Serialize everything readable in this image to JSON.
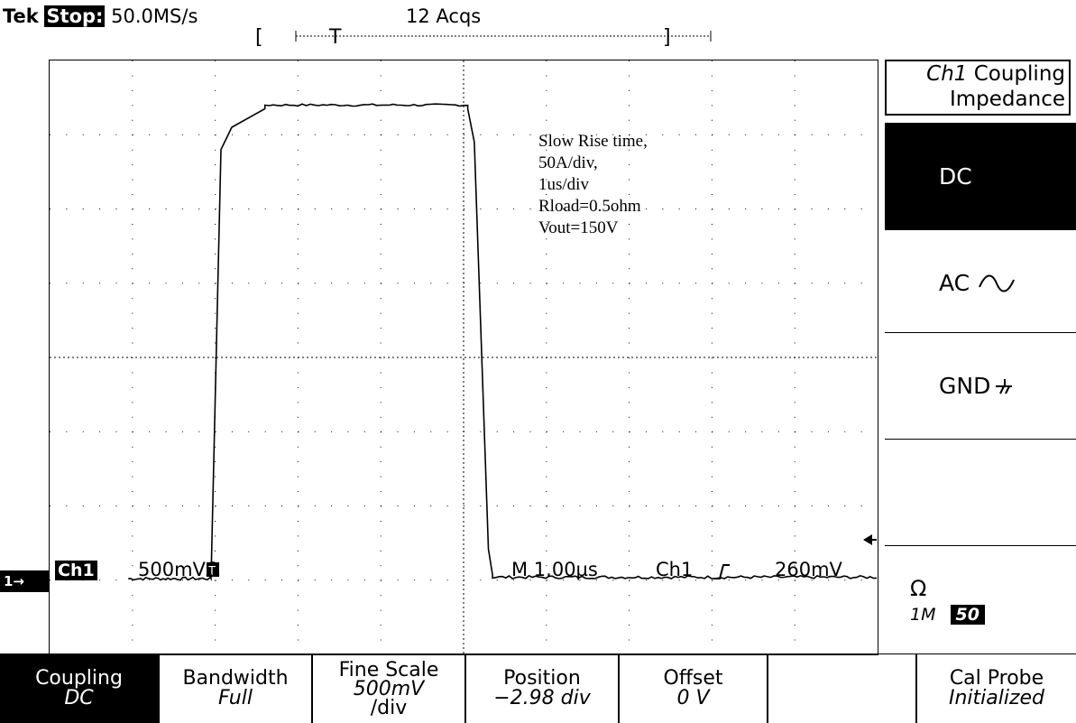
{
  "status": {
    "brand": "Tek",
    "state": "Stop:",
    "sample_rate": "50.0MS/s",
    "acquisitions": "12 Acqs"
  },
  "record_window": {
    "left_bracket": "[",
    "trigger_marker": "T",
    "right_bracket": "]"
  },
  "annotation": {
    "lines": [
      "Slow Rise time,",
      "50A/div,",
      "1us/div",
      "Rload=0.5ohm",
      "Vout=150V"
    ]
  },
  "readout": {
    "channel": "Ch1",
    "volts_div": "500mVΩ",
    "timebase": "M 1.00µs",
    "trigger_source": "Ch1",
    "trigger_slope_icon": "rising-edge-icon",
    "trigger_level": "260mV",
    "ground_marker": "1→",
    "trigger_point_marker": "T"
  },
  "waveform": {
    "grid_divisions_x": 10,
    "grid_divisions_y": 8,
    "baseline_div": -2.98,
    "high_level_div": 3.4,
    "rise_start_div": 1.95,
    "rise_end_div": 2.6,
    "fall_start_div": 5.05,
    "fall_end_div": 5.35
  },
  "side_menu": {
    "title_channel": "Ch1",
    "title_line1": "Coupling",
    "title_line2": "Impedance",
    "items": [
      {
        "label": "DC",
        "selected": true
      },
      {
        "label": "AC",
        "icon": "ac-wave-icon",
        "selected": false
      },
      {
        "label": "GND",
        "icon": "ground-icon",
        "selected": false
      },
      {
        "label": "",
        "selected": false
      },
      {
        "label": "Ω",
        "option_a": "1M",
        "option_b": "50",
        "selected": false
      }
    ]
  },
  "bottom_menu": [
    {
      "label": "Coupling",
      "value": "DC",
      "selected": true
    },
    {
      "label": "Bandwidth",
      "value": "Full",
      "selected": false
    },
    {
      "label": "Fine Scale",
      "value": "500mV",
      "value2": "/div",
      "selected": false
    },
    {
      "label": "Position",
      "value": "−2.98 div",
      "selected": false
    },
    {
      "label": "Offset",
      "value": "0 V",
      "selected": false
    },
    {
      "label": "",
      "value": "",
      "selected": false
    },
    {
      "label": "Cal Probe",
      "value": "Initialized",
      "selected": false
    }
  ],
  "colors": {
    "background": "#ffffff",
    "foreground": "#000000"
  }
}
